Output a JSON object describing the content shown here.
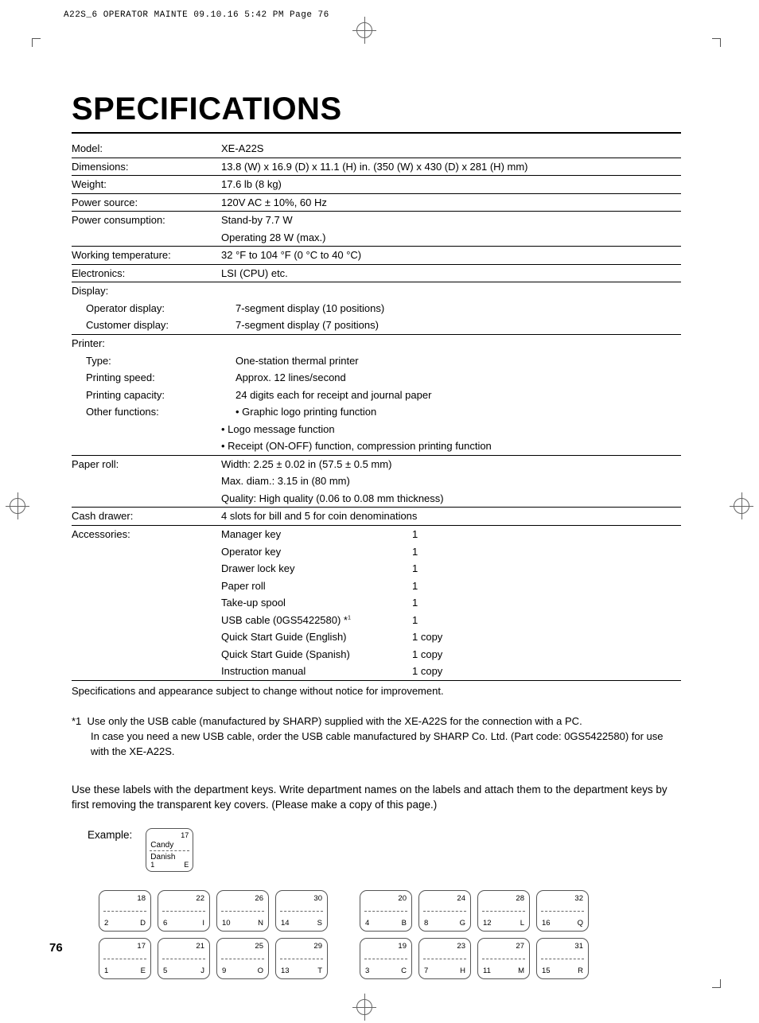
{
  "header_line": "A22S_6 OPERATOR MAINTE  09.10.16 5:42 PM  Page 76",
  "title": "SPECIFICATIONS",
  "page_number": "76",
  "specs": {
    "model": {
      "label": "Model:",
      "value": "XE-A22S"
    },
    "dimensions": {
      "label": "Dimensions:",
      "value": "13.8 (W) x 16.9 (D) x 11.1 (H) in. (350 (W) x 430 (D) x 281 (H) mm)"
    },
    "weight": {
      "label": "Weight:",
      "value": "17.6 lb (8 kg)"
    },
    "power_source": {
      "label": "Power source:",
      "value": "120V AC ± 10%, 60 Hz"
    },
    "power_consumption": {
      "label": "Power consumption:",
      "value1": "Stand-by 7.7 W",
      "value2": "Operating 28 W (max.)"
    },
    "working_temp": {
      "label": "Working temperature:",
      "value": "32 °F to 104 °F (0 °C to 40 °C)"
    },
    "electronics": {
      "label": "Electronics:",
      "value": "LSI (CPU) etc."
    },
    "display": {
      "label": "Display:"
    },
    "operator_display": {
      "label": "Operator display:",
      "value": "7-segment display (10 positions)"
    },
    "customer_display": {
      "label": "Customer display:",
      "value": "7-segment display (7 positions)"
    },
    "printer": {
      "label": "Printer:"
    },
    "printer_type": {
      "label": "Type:",
      "value": "One-station thermal printer"
    },
    "printing_speed": {
      "label": "Printing speed:",
      "value": "Approx. 12 lines/second"
    },
    "printing_capacity": {
      "label": "Printing capacity:",
      "value": "24 digits each for receipt and journal paper"
    },
    "other_functions": {
      "label": "Other functions:",
      "v1": "• Graphic logo printing function",
      "v2": "• Logo message function",
      "v3": "• Receipt (ON-OFF) function, compression printing function"
    },
    "paper_roll": {
      "label": "Paper roll:",
      "v1": "Width: 2.25 ± 0.02 in (57.5 ± 0.5 mm)",
      "v2": "Max. diam.: 3.15 in (80 mm)",
      "v3": "Quality: High quality (0.06 to 0.08 mm thickness)"
    },
    "cash_drawer": {
      "label": "Cash drawer:",
      "value": "4 slots for bill and 5 for coin denominations"
    },
    "accessories": {
      "label": "Accessories:",
      "items": [
        {
          "name": "Manager key",
          "qty": "1"
        },
        {
          "name": "Operator key",
          "qty": "1"
        },
        {
          "name": "Drawer lock key",
          "qty": "1"
        },
        {
          "name": "Paper roll",
          "qty": "1"
        },
        {
          "name": "Take-up spool",
          "qty": "1"
        },
        {
          "name": "USB cable (0GS5422580) *",
          "sup": "1",
          "qty": "1"
        },
        {
          "name": "Quick Start Guide (English)",
          "qty": "1 copy"
        },
        {
          "name": "Quick Start Guide (Spanish)",
          "qty": "1 copy"
        },
        {
          "name": "Instruction manual",
          "qty": "1 copy"
        }
      ]
    }
  },
  "footnote_change": "Specifications and appearance subject to change without notice for improvement.",
  "footnote_usb": {
    "prefix": "*1",
    "line1": "Use only the USB cable (manufactured by SHARP) supplied with the XE-A22S for the connection with a PC.",
    "line2": "In case you need a new USB cable, order the USB cable manufactured by SHARP Co. Ltd. (Part code: 0GS5422580) for use with the XE-A22S."
  },
  "instructions": "Use these labels with the department keys.  Write department names on the labels and attach them to the department keys by first removing the transparent key covers.  (Please make a copy of this page.)",
  "example_label": "Example:",
  "example_key": {
    "tnum": "17",
    "top": "Candy",
    "bot": "Danish",
    "bl": "1",
    "br": "E"
  },
  "keyset_left": [
    [
      {
        "t": "18",
        "bl": "2",
        "br": "D"
      },
      {
        "t": "17",
        "bl": "1",
        "br": "E"
      }
    ],
    [
      {
        "t": "22",
        "bl": "6",
        "br": "I"
      },
      {
        "t": "21",
        "bl": "5",
        "br": "J"
      }
    ],
    [
      {
        "t": "26",
        "bl": "10",
        "br": "N"
      },
      {
        "t": "25",
        "bl": "9",
        "br": "O"
      }
    ],
    [
      {
        "t": "30",
        "bl": "14",
        "br": "S"
      },
      {
        "t": "29",
        "bl": "13",
        "br": "T"
      }
    ]
  ],
  "keyset_right": [
    [
      {
        "t": "20",
        "bl": "4",
        "br": "B"
      },
      {
        "t": "19",
        "bl": "3",
        "br": "C"
      }
    ],
    [
      {
        "t": "24",
        "bl": "8",
        "br": "G"
      },
      {
        "t": "23",
        "bl": "7",
        "br": "H"
      }
    ],
    [
      {
        "t": "28",
        "bl": "12",
        "br": "L"
      },
      {
        "t": "27",
        "bl": "11",
        "br": "M"
      }
    ],
    [
      {
        "t": "32",
        "bl": "16",
        "br": "Q"
      },
      {
        "t": "31",
        "bl": "15",
        "br": "R"
      }
    ]
  ]
}
